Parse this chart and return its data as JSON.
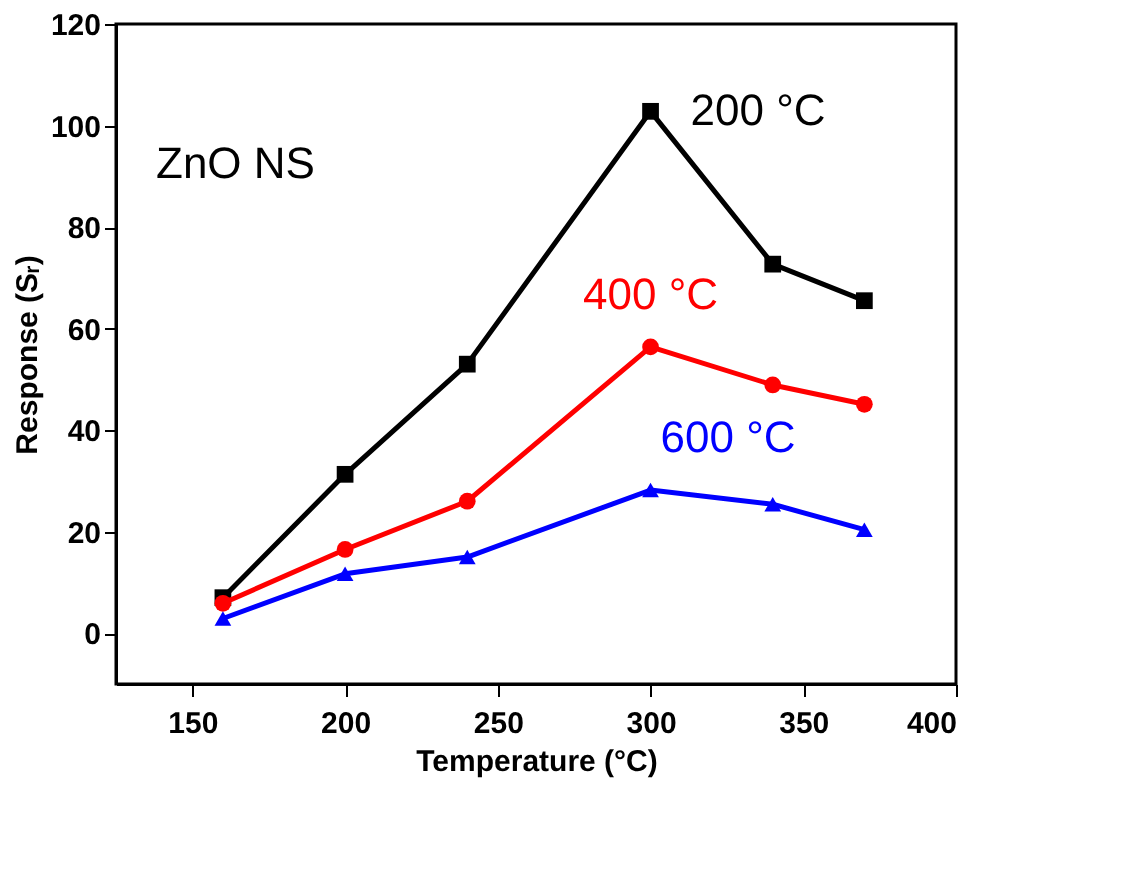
{
  "chart_data": {
    "type": "line",
    "xlabel": "Temperature (°C)",
    "ylabel": "Response (Sᵣ)",
    "x": [
      160,
      200,
      240,
      300,
      340,
      370
    ],
    "series": [
      {
        "name": "200 °C",
        "color": "#000000",
        "marker": "square",
        "values": [
          7,
          31.3,
          53,
          102.8,
          72.7,
          65.5
        ]
      },
      {
        "name": "400 °C",
        "color": "#ff0000",
        "marker": "circle",
        "values": [
          5.9,
          16.5,
          26,
          56.4,
          48.9,
          45.1
        ]
      },
      {
        "name": "600 °C",
        "color": "#0000ff",
        "marker": "triangle",
        "values": [
          2.9,
          11.7,
          15,
          28.2,
          25.4,
          20.4
        ]
      }
    ],
    "xlim": [
      125,
      400
    ],
    "xticks": [
      150,
      200,
      250,
      300,
      350,
      400
    ],
    "ylim": [
      -10,
      120
    ],
    "yticks": [
      0,
      20,
      40,
      60,
      80,
      100,
      120
    ],
    "annotations": [
      "ZnO NS"
    ],
    "grid": false,
    "line_style": "solid"
  }
}
